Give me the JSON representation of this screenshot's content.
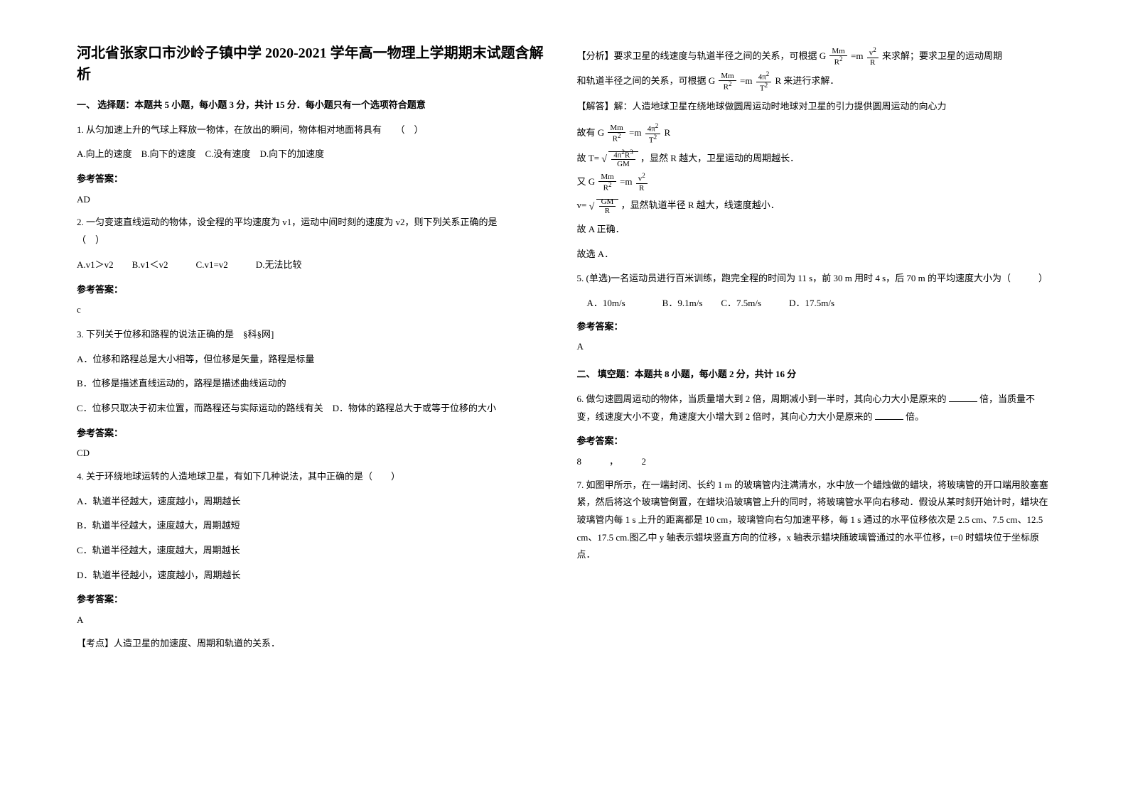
{
  "title": "河北省张家口市沙岭子镇中学 2020-2021 学年高一物理上学期期末试题含解析",
  "section1": {
    "heading": "一、 选择题：本题共 5 小题，每小题 3 分，共计 15 分．每小题只有一个选项符合题意",
    "q1": {
      "text": "1. 从匀加速上升的气球上释放一物体，在放出的瞬间，物体相对地面将具有　　（　）",
      "options": "A.向上的速度　B.向下的速度　C.没有速度　D.向下的加速度",
      "answerLabel": "参考答案：",
      "answer": "AD"
    },
    "q2": {
      "text": "2. 一匀变速直线运动的物体，设全程的平均速度为 v1，运动中间时刻的速度为 v2，则下列关系正确的是　　　　（　）",
      "options": "A.v1＞v2　　B.v1＜v2　　　C.v1=v2　　　D.无法比较",
      "answerLabel": "参考答案：",
      "answer": "c"
    },
    "q3": {
      "text": "3. 下列关于位移和路程的说法正确的是　§科§网]",
      "optA": "A．位移和路程总是大小相等，但位移是矢量，路程是标量",
      "optB": "B．位移是描述直线运动的，路程是描述曲线运动的",
      "optC": "C．位移只取决于初末位置，而路程还与实际运动的路线有关　D．物体的路程总大于或等于位移的大小",
      "answerLabel": "参考答案：",
      "answer": "CD"
    },
    "q4": {
      "text": "4. 关于环绕地球运转的人造地球卫星，有如下几种说法，其中正确的是（　　）",
      "optA": "A．轨道半径越大，速度越小，周期越长",
      "optB": "B．轨道半径越大，速度越大，周期越短",
      "optC": "C．轨道半径越大，速度越大，周期越长",
      "optD": "D．轨道半径越小，速度越小，周期越长",
      "answerLabel": "参考答案：",
      "answer": "A",
      "note": "【考点】人造卫星的加速度、周期和轨道的关系．"
    }
  },
  "col2": {
    "analysis": "【分析】要求卫星的线速度与轨道半径之间的关系，可根据 G",
    "analysis2": "来求解；要求卫星的运动周期",
    "line2a": "和轨道半径之间的关系，可根据 G",
    "line2b": "R 来进行求解．",
    "explain": "【解答】解：人造地球卫星在绕地球做圆周运动时地球对卫星的引力提供圆周运动的向心力",
    "line3a": "故有 G",
    "line3b": "R",
    "line4a": "故 T=",
    "line4b": "，显然 R 越大，卫星运动的周期越长．",
    "line5a": "又 G",
    "line6a": "v=",
    "line6b": "，显然轨道半径 R 越大，线速度越小．",
    "line7": "故 A 正确．",
    "line8": "故选 A．",
    "q5": {
      "text": "5. (单选)一名运动员进行百米训练，跑完全程的时间为 11 s，前 30 m 用时 4 s，后 70 m 的平均速度大小为（　　　）",
      "options": "A．10m/s　　　　B．9.1m/s　　C．7.5m/s　　　D．17.5m/s",
      "answerLabel": "参考答案：",
      "answer": "A"
    },
    "section2": "二、 填空题：本题共 8 小题，每小题 2 分，共计 16 分",
    "q6": {
      "text1": "6. 做匀速圆周运动的物体，当质量增大到 2 倍，周期减小到一半时，其向心力大小是原来的",
      "text2": "倍，当质量不变，线速度大小不变，角速度大小增大到 2 倍时，其向心力大小是原来的",
      "text3": "倍。",
      "answerLabel": "参考答案：",
      "answer": "8　　　，　　　2"
    },
    "q7": {
      "text": "7. 如图甲所示，在一端封闭、长约 1 m 的玻璃管内注满清水，水中放一个蜡烛做的蜡块，将玻璃管的开口端用胶塞塞紧，然后将这个玻璃管倒置，在蜡块沿玻璃管上升的同时，将玻璃管水平向右移动．假设从某时刻开始计时，蜡块在玻璃管内每 1 s 上升的距离都是 10 cm，玻璃管向右匀加速平移，每 1 s 通过的水平位移依次是 2.5 cm、7.5 cm、12.5 cm、17.5 cm.图乙中 y 轴表示蜡块竖直方向的位移，x 轴表示蜡块随玻璃管通过的水平位移，t=0 时蜡块位于坐标原点．"
    },
    "formula": {
      "Mm": "Mm",
      "R2": "R",
      "v2": "v",
      "R": "R",
      "4pi2": "4π",
      "T2": "T",
      "4pi2R3": "4π",
      "R3suffix": "R",
      "GM": "GM",
      "eqm": "=m"
    }
  }
}
